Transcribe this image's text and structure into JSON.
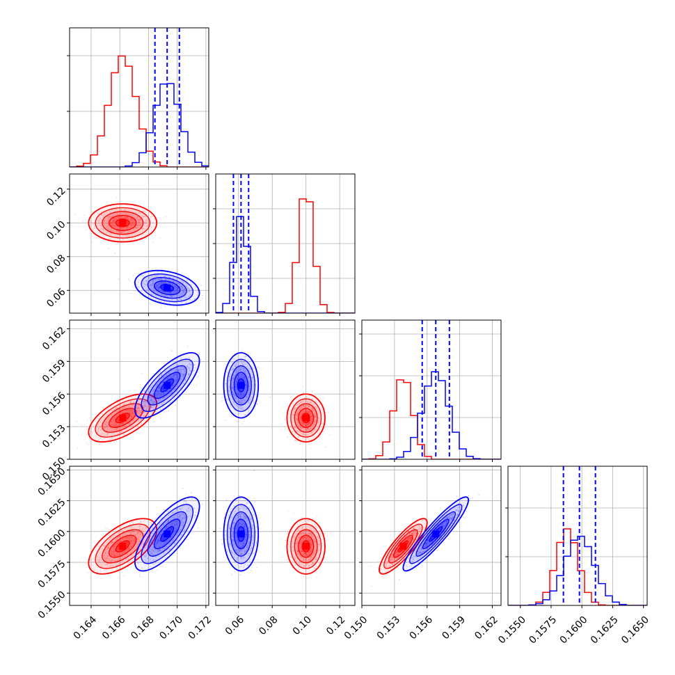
{
  "colors": {
    "series_a": "#ff0000",
    "series_b": "#0000ff",
    "grid": "#b0b0b0",
    "frame": "#000000",
    "background": "#ffffff"
  },
  "chart_data": {
    "type": "corner",
    "grid": true,
    "parameters": [
      {
        "range": [
          0.1625,
          0.1722
        ],
        "ticks": [
          0.164,
          0.166,
          0.168,
          0.17,
          0.172
        ],
        "tick_labels": [
          "0.164",
          "0.166",
          "0.168",
          "0.170",
          "0.172"
        ]
      },
      {
        "range": [
          0.0465,
          0.129
        ],
        "ticks": [
          0.06,
          0.08,
          0.1,
          0.12
        ],
        "tick_labels": [
          "0.06",
          "0.08",
          "0.10",
          "0.12"
        ]
      },
      {
        "range": [
          0.15,
          0.1628
        ],
        "ticks": [
          0.15,
          0.153,
          0.156,
          0.159,
          0.162
        ],
        "tick_labels": [
          "0.150",
          "0.153",
          "0.156",
          "0.159",
          "0.162"
        ]
      },
      {
        "range": [
          0.154,
          0.1653
        ],
        "ticks": [
          0.155,
          0.1575,
          0.16,
          0.1625,
          0.165
        ],
        "tick_labels": [
          "0.1550",
          "0.1575",
          "0.1600",
          "0.1625",
          "0.1650"
        ]
      }
    ],
    "diagonal_tick_values": {
      "p0": [
        0.4,
        0.8
      ],
      "p1": [
        0.25,
        0.5,
        0.75
      ],
      "p2": [
        0.3,
        0.6,
        0.9
      ],
      "p3": [
        0.35,
        0.7
      ]
    },
    "series": [
      {
        "color": "#ff0000",
        "mean": [
          0.1662,
          0.1,
          0.1538,
          0.1588
        ],
        "sd": [
          0.00095,
          0.0045,
          0.00088,
          0.0009
        ],
        "hist_peak": [
          0.8,
          0.9,
          0.6,
          0.55
        ],
        "corr": {
          "0-1": 0.0,
          "0-2": 0.6,
          "0-3": 0.6,
          "1-2": 0.0,
          "1-3": 0.0,
          "2-3": 0.85
        },
        "quantile_lines": false
      },
      {
        "color": "#0000ff",
        "mean": [
          0.1693,
          0.0615,
          0.1568,
          0.1598
        ],
        "sd": [
          0.0009,
          0.0041,
          0.0012,
          0.0012
        ],
        "hist_peak": [
          0.62,
          0.7,
          0.63,
          0.5
        ],
        "corr": {
          "0-1": -0.3,
          "0-2": 0.75,
          "0-3": 0.75,
          "1-2": 0.0,
          "1-3": 0.0,
          "2-3": 0.92
        },
        "quantile_lines": true,
        "quantiles": [
          [
            0.16845,
            0.1693,
            0.17015
          ],
          [
            0.057,
            0.0615,
            0.066
          ],
          [
            0.15555,
            0.1568,
            0.15805
          ],
          [
            0.1585,
            0.1598,
            0.1611
          ]
        ]
      }
    ]
  }
}
